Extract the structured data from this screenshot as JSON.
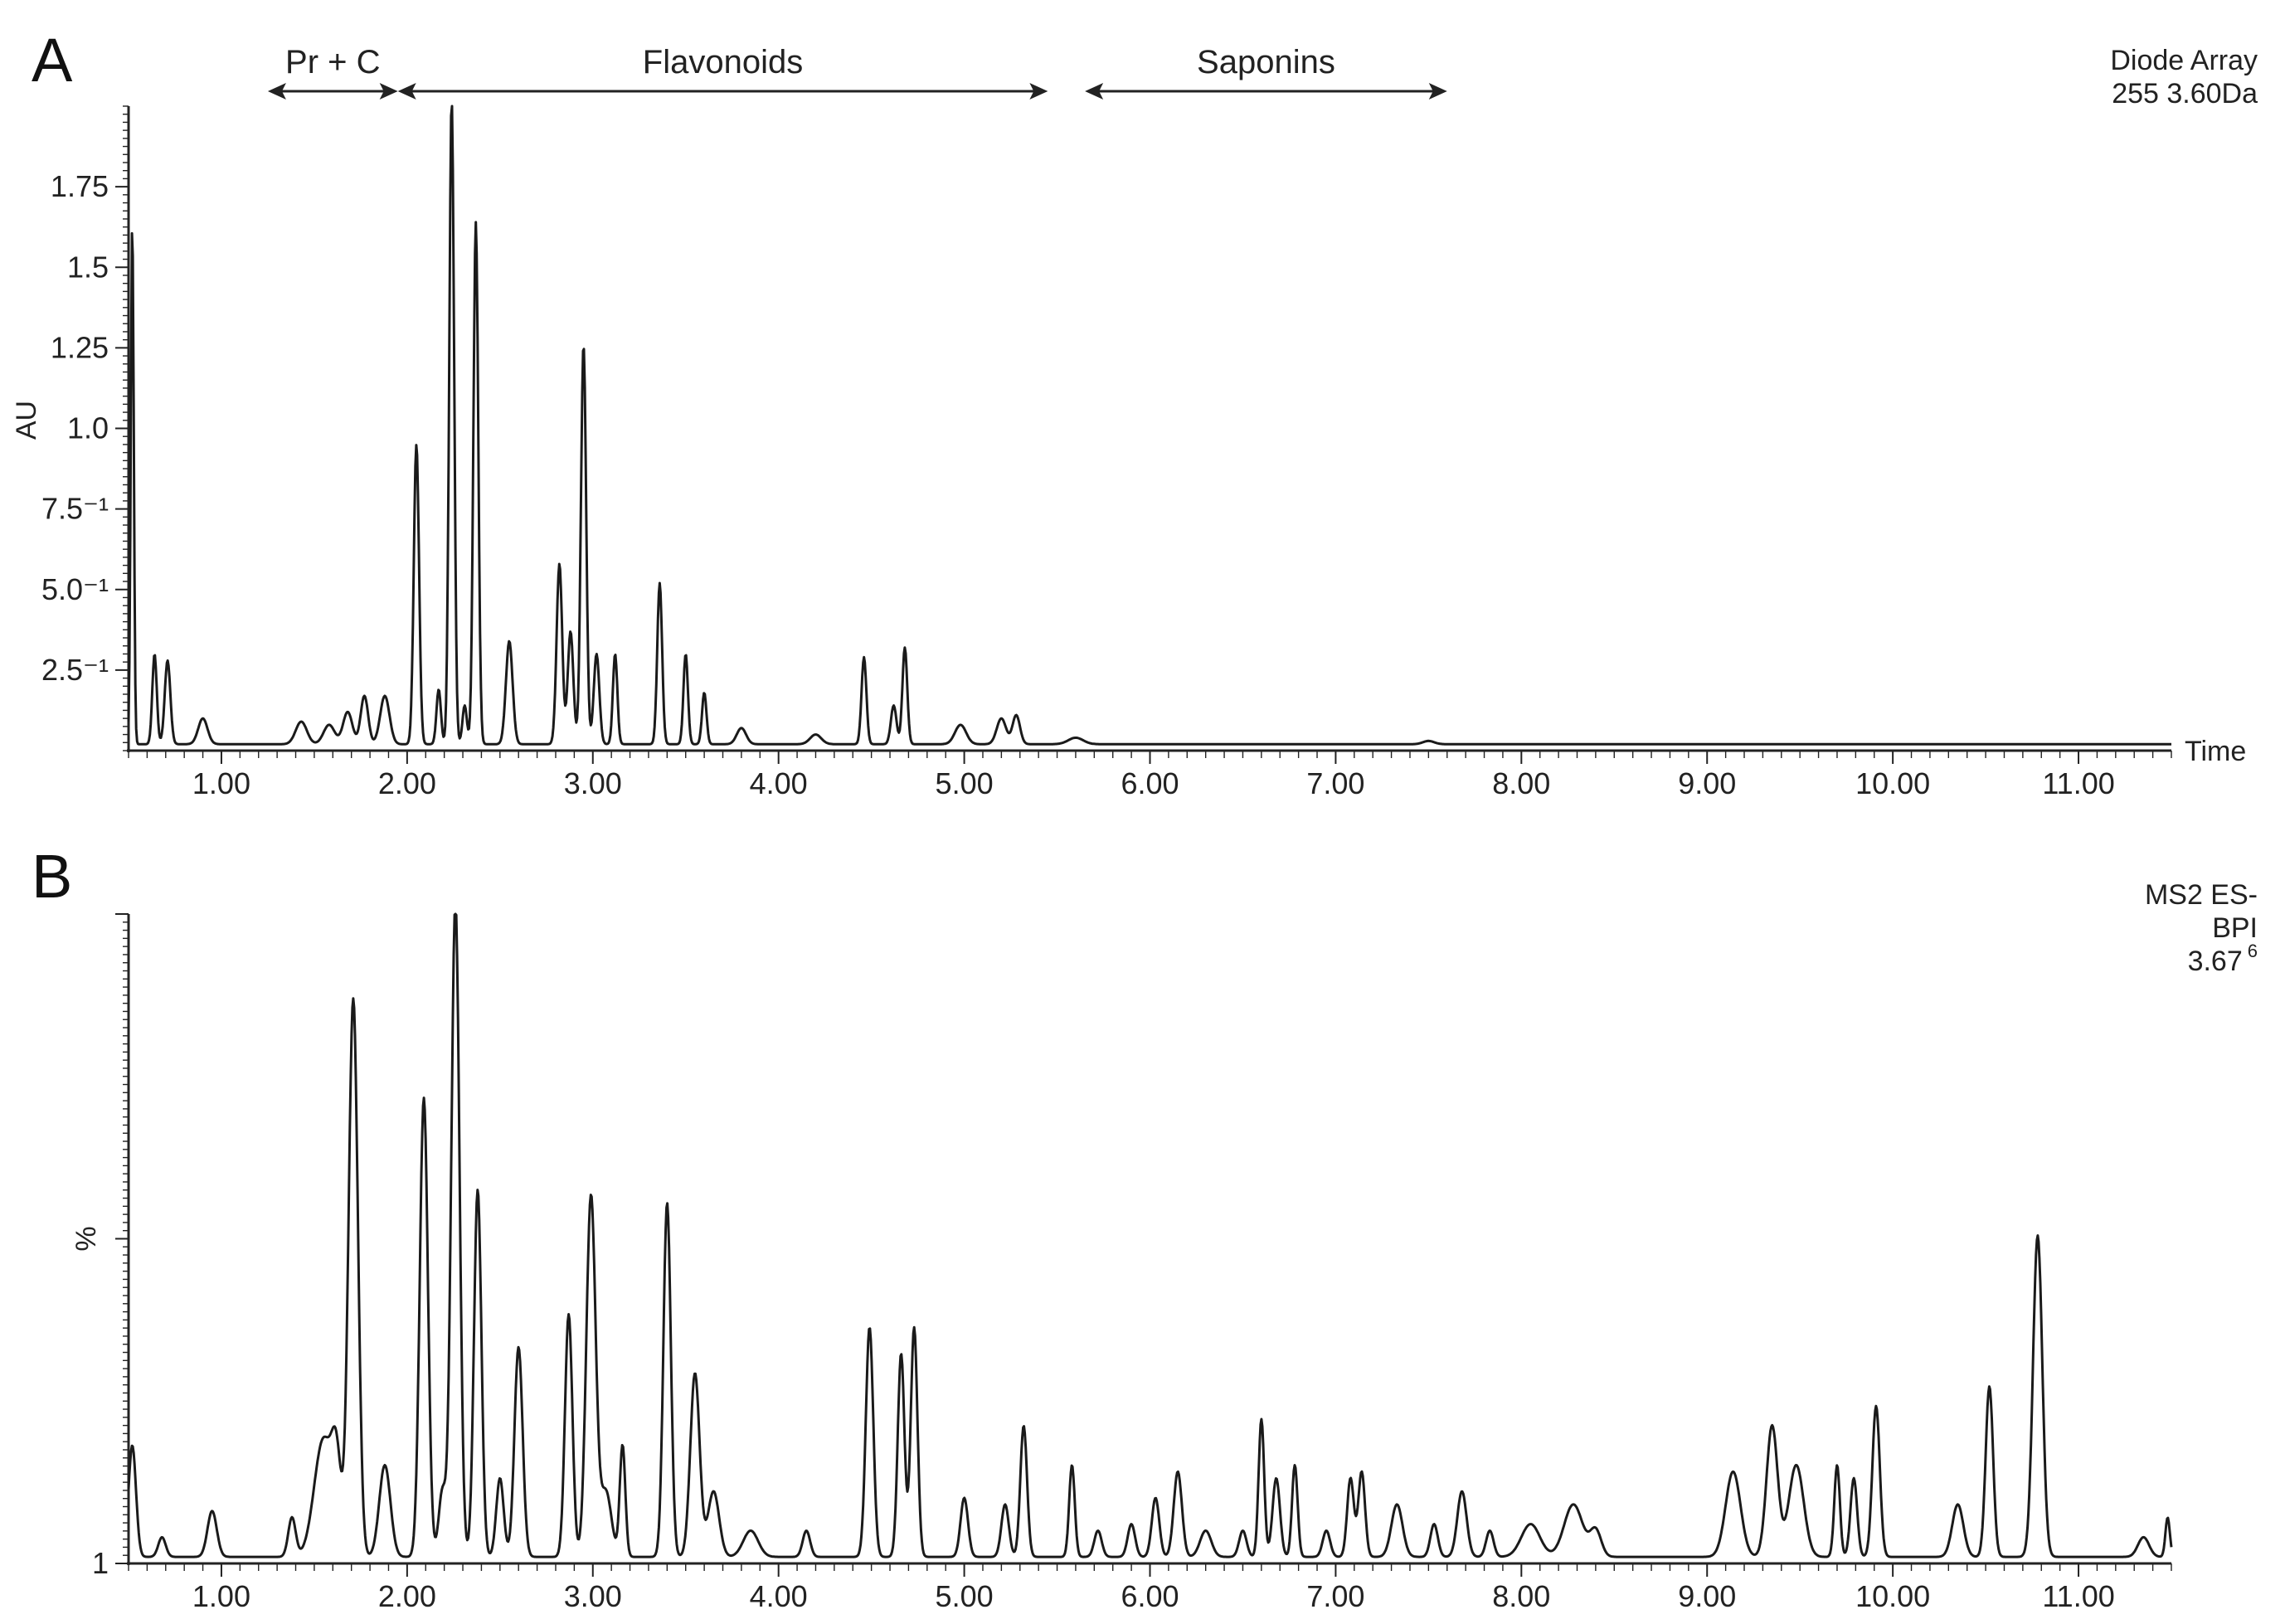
{
  "chart_data": [
    {
      "type": "line",
      "panel": "A",
      "info": [
        "Diode Array",
        "255 3.60Da"
      ],
      "xlabel": "Time",
      "ylabel": "AU",
      "xlim": [
        0.5,
        11.5
      ],
      "ylim": [
        0,
        2.0
      ],
      "xticks": [
        1.0,
        2.0,
        3.0,
        4.0,
        5.0,
        6.0,
        7.0,
        8.0,
        9.0,
        10.0,
        11.0
      ],
      "xtick_labels": [
        "1.00",
        "2.00",
        "3.00",
        "4.00",
        "5.00",
        "6.00",
        "7.00",
        "8.00",
        "9.00",
        "10.00",
        "11.00"
      ],
      "yticks": [
        0.25,
        0.5,
        0.75,
        1.0,
        1.25,
        1.5,
        1.75
      ],
      "ytick_labels": [
        "2.5⁻¹",
        "5.0⁻¹",
        "7.5⁻¹",
        "1.0",
        "1.25",
        "1.5",
        "1.75"
      ],
      "regions": [
        {
          "label": "Pr + C",
          "x_start": 1.25,
          "x_end": 1.95
        },
        {
          "label": "Flavonoids",
          "x_start": 1.95,
          "x_end": 5.45
        },
        {
          "label": "Saponins",
          "x_start": 5.65,
          "x_end": 7.6
        }
      ],
      "baseline": 0.02,
      "peaks": [
        [
          0.52,
          1.62,
          0.008
        ],
        [
          0.64,
          0.28,
          0.012
        ],
        [
          0.71,
          0.26,
          0.015
        ],
        [
          0.9,
          0.08,
          0.025
        ],
        [
          1.43,
          0.07,
          0.03
        ],
        [
          1.58,
          0.06,
          0.03
        ],
        [
          1.68,
          0.1,
          0.025
        ],
        [
          1.77,
          0.15,
          0.02
        ],
        [
          1.88,
          0.15,
          0.025
        ],
        [
          2.05,
          0.93,
          0.014
        ],
        [
          2.17,
          0.17,
          0.012
        ],
        [
          2.24,
          2.0,
          0.013
        ],
        [
          2.31,
          0.12,
          0.012
        ],
        [
          2.37,
          1.62,
          0.013
        ],
        [
          2.55,
          0.32,
          0.018
        ],
        [
          2.82,
          0.56,
          0.015
        ],
        [
          2.88,
          0.35,
          0.015
        ],
        [
          2.95,
          1.24,
          0.014
        ],
        [
          3.02,
          0.28,
          0.015
        ],
        [
          3.12,
          0.28,
          0.012
        ],
        [
          3.36,
          0.5,
          0.013
        ],
        [
          3.5,
          0.28,
          0.012
        ],
        [
          3.6,
          0.16,
          0.012
        ],
        [
          3.8,
          0.05,
          0.025
        ],
        [
          4.2,
          0.03,
          0.03
        ],
        [
          4.46,
          0.27,
          0.013
        ],
        [
          4.62,
          0.12,
          0.015
        ],
        [
          4.68,
          0.3,
          0.013
        ],
        [
          4.98,
          0.06,
          0.03
        ],
        [
          5.2,
          0.08,
          0.025
        ],
        [
          5.28,
          0.09,
          0.02
        ],
        [
          5.6,
          0.02,
          0.04
        ],
        [
          7.5,
          0.01,
          0.03
        ]
      ]
    },
    {
      "type": "line",
      "panel": "B",
      "info": [
        "MS2 ES-",
        "BPI",
        "3.67",
        "6"
      ],
      "ylabel": "%",
      "xlim": [
        0.5,
        11.5
      ],
      "ylim": [
        1,
        100
      ],
      "ytick_labels": [
        "1"
      ],
      "xticks": [
        1.0,
        2.0,
        3.0,
        4.0,
        5.0,
        6.0,
        7.0,
        8.0,
        9.0,
        10.0,
        11.0
      ],
      "xtick_labels": [
        "1.00",
        "2.00",
        "3.00",
        "4.00",
        "5.00",
        "6.00",
        "7.00",
        "8.00",
        "9.00",
        "10.00",
        "11.00"
      ],
      "baseline": 2,
      "peaks": [
        [
          0.52,
          17,
          0.02
        ],
        [
          0.68,
          3,
          0.02
        ],
        [
          0.95,
          7,
          0.025
        ],
        [
          1.38,
          6,
          0.02
        ],
        [
          1.55,
          18,
          0.05
        ],
        [
          1.62,
          12,
          0.025
        ],
        [
          1.71,
          85,
          0.025
        ],
        [
          1.88,
          14,
          0.03
        ],
        [
          2.09,
          70,
          0.022
        ],
        [
          2.19,
          10,
          0.02
        ],
        [
          2.26,
          100,
          0.022
        ],
        [
          2.38,
          56,
          0.02
        ],
        [
          2.5,
          12,
          0.02
        ],
        [
          2.6,
          32,
          0.022
        ],
        [
          2.87,
          37,
          0.02
        ],
        [
          2.99,
          55,
          0.025
        ],
        [
          3.07,
          10,
          0.03
        ],
        [
          3.16,
          17,
          0.015
        ],
        [
          3.4,
          54,
          0.02
        ],
        [
          3.55,
          28,
          0.025
        ],
        [
          3.65,
          10,
          0.03
        ],
        [
          3.85,
          4,
          0.04
        ],
        [
          4.15,
          4,
          0.02
        ],
        [
          4.49,
          35,
          0.02
        ],
        [
          4.66,
          31,
          0.018
        ],
        [
          4.73,
          35,
          0.018
        ],
        [
          5.0,
          9,
          0.02
        ],
        [
          5.22,
          8,
          0.02
        ],
        [
          5.32,
          20,
          0.018
        ],
        [
          5.58,
          14,
          0.015
        ],
        [
          5.72,
          4,
          0.02
        ],
        [
          5.9,
          5,
          0.02
        ],
        [
          6.03,
          9,
          0.02
        ],
        [
          6.15,
          13,
          0.022
        ],
        [
          6.3,
          4,
          0.03
        ],
        [
          6.5,
          4,
          0.02
        ],
        [
          6.6,
          21,
          0.015
        ],
        [
          6.68,
          12,
          0.02
        ],
        [
          6.78,
          14,
          0.015
        ],
        [
          6.95,
          4,
          0.02
        ],
        [
          7.08,
          12,
          0.018
        ],
        [
          7.14,
          13,
          0.018
        ],
        [
          7.33,
          8,
          0.03
        ],
        [
          7.53,
          5,
          0.02
        ],
        [
          7.68,
          10,
          0.025
        ],
        [
          7.83,
          4,
          0.02
        ],
        [
          8.05,
          5,
          0.05
        ],
        [
          8.28,
          8,
          0.05
        ],
        [
          8.4,
          4,
          0.03
        ],
        [
          9.14,
          13,
          0.04
        ],
        [
          9.35,
          20,
          0.03
        ],
        [
          9.48,
          14,
          0.04
        ],
        [
          9.7,
          14,
          0.015
        ],
        [
          9.79,
          12,
          0.018
        ],
        [
          9.91,
          23,
          0.02
        ],
        [
          10.35,
          8,
          0.03
        ],
        [
          10.52,
          26,
          0.02
        ],
        [
          10.78,
          49,
          0.025
        ],
        [
          11.35,
          3,
          0.03
        ],
        [
          11.48,
          6,
          0.012
        ]
      ]
    }
  ]
}
